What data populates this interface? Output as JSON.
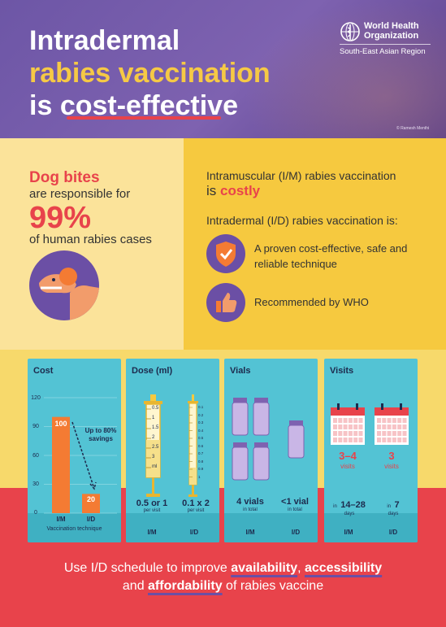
{
  "header": {
    "title_line1": "Intradermal",
    "title_line2": "rabies vaccination",
    "title_line3a": "is ",
    "title_line3b": "cost-effective",
    "org_name_line1": "World Health",
    "org_name_line2": "Organization",
    "org_region": "South-East Asian Region",
    "photo_credit": "© Ramesh Menthi"
  },
  "dog_bites": {
    "title": "Dog bites",
    "sub": "are responsible for",
    "percent": "99%",
    "sub2": "of human rabies cases"
  },
  "routes": {
    "im_text": "Intramuscular (I/M) rabies vaccination",
    "im_costly_prefix": "is ",
    "im_costly": "costly",
    "id_text": "Intradermal (I/D) rabies vaccination is:",
    "point1": "A proven cost-effective, safe and reliable technique",
    "point2": "Recommended by WHO"
  },
  "cards": {
    "cost": {
      "title": "Cost",
      "y_ticks": [
        "120",
        "90",
        "60",
        "30",
        "0"
      ],
      "bar_im": "100",
      "bar_id": "20",
      "savings": "Up to 80% savings",
      "cat_im": "I/M",
      "cat_id": "I/D",
      "xlabel": "Vaccination technique"
    },
    "dose": {
      "title": "Dose (ml)",
      "syringe1_ticks": [
        "0.5",
        "1",
        "1.5",
        "2",
        "2.5",
        "3",
        "ml"
      ],
      "syringe2_ticks": [
        "0.1",
        "0.2",
        "0.3",
        "0.4",
        "0.5",
        "0.6",
        "0.7",
        "0.8",
        "0.9",
        "1"
      ],
      "im_value": "0.5 or 1",
      "id_value": "0.1 x 2",
      "per_visit": "per visit",
      "cat_im": "I/M",
      "cat_id": "I/D"
    },
    "vials": {
      "title": "Vials",
      "im_value": "4 vials",
      "id_value": "<1 vial",
      "in_total": "in total",
      "cat_im": "I/M",
      "cat_id": "I/D"
    },
    "visits": {
      "title": "Visits",
      "im_count": "3–4",
      "id_count": "3",
      "visits_word": "visits",
      "im_days": "14–28",
      "id_days": "7",
      "in_word": "in",
      "days_word": "days",
      "cat_im": "I/M",
      "cat_id": "I/D"
    }
  },
  "chart_data": {
    "type": "bar",
    "categories": [
      "I/M",
      "I/D"
    ],
    "values": [
      100,
      20
    ],
    "title": "Cost",
    "xlabel": "Vaccination technique",
    "ylabel": "",
    "ylim": [
      0,
      120
    ]
  },
  "footer": {
    "line1a": "Use I/D schedule to improve ",
    "availability": "availability",
    "comma": ", ",
    "accessibility": "accessibility",
    "line2a": "and ",
    "affordability": "affordability",
    "line2b": " of rabies vaccine"
  },
  "colors": {
    "purple": "#6b4fa5",
    "red": "#e8434b",
    "yellow": "#f6c93f",
    "teal": "#53c3d4",
    "orange": "#f47b33"
  }
}
